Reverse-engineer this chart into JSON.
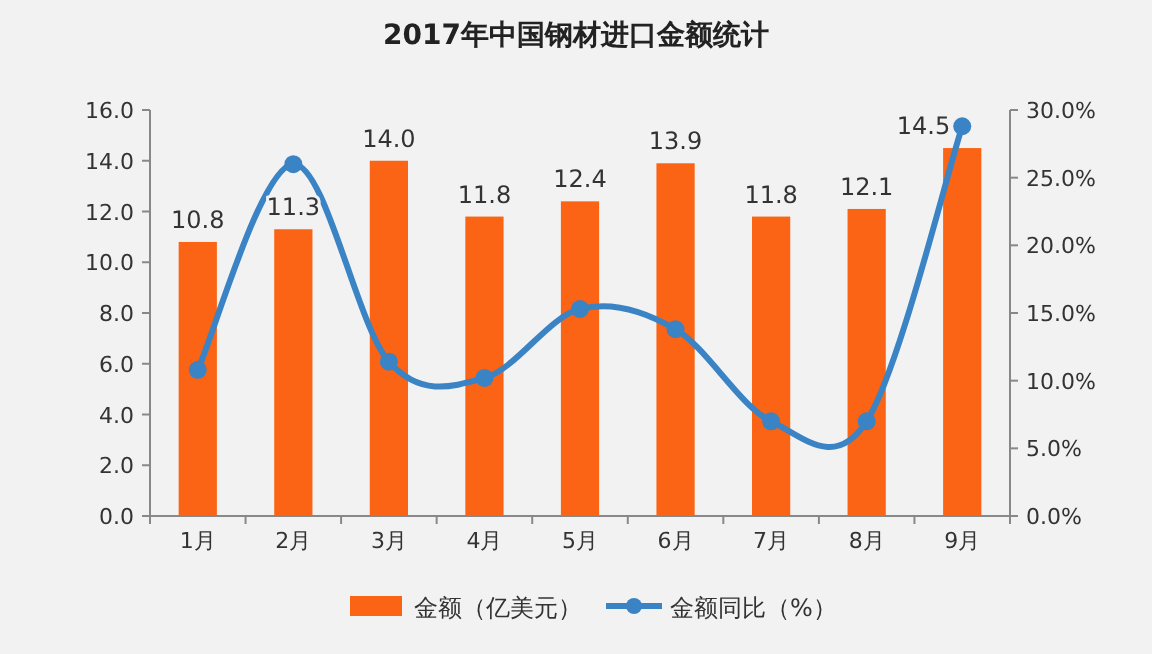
{
  "chart_data": {
    "type": "bar",
    "title": "2017年中国钢材进口金额统计",
    "categories": [
      "1月",
      "2月",
      "3月",
      "4月",
      "5月",
      "6月",
      "7月",
      "8月",
      "9月"
    ],
    "series": [
      {
        "name": "金额（亿美元）",
        "color": "#fa6414",
        "values": [
          10.8,
          11.3,
          14.0,
          11.8,
          12.4,
          13.9,
          11.8,
          12.1,
          14.5
        ],
        "value_labels": [
          "10.8",
          "11.3",
          "14.0",
          "11.8",
          "12.4",
          "13.9",
          "11.8",
          "12.1",
          "14.5"
        ]
      },
      {
        "name": "金额同比（%）",
        "type": "line",
        "axis": "y2",
        "color": "#3a83c4",
        "marker": "circle",
        "values": [
          10.8,
          26.0,
          11.4,
          10.2,
          15.3,
          13.8,
          7.0,
          7.0,
          28.8
        ]
      }
    ],
    "ylim": [
      0,
      16
    ],
    "yticks": [
      {
        "value": 0,
        "label": "0.0"
      },
      {
        "value": 2,
        "label": "2.0"
      },
      {
        "value": 4,
        "label": "4.0"
      },
      {
        "value": 6,
        "label": "6.0"
      },
      {
        "value": 8,
        "label": "8.0"
      },
      {
        "value": 10,
        "label": "10.0"
      },
      {
        "value": 12,
        "label": "12.0"
      },
      {
        "value": 14,
        "label": "14.0"
      },
      {
        "value": 16,
        "label": "16.0"
      }
    ],
    "y2lim": [
      0,
      30
    ],
    "y2ticks": [
      {
        "value": 0,
        "label": "0.0%"
      },
      {
        "value": 5,
        "label": "5.0%"
      },
      {
        "value": 10,
        "label": "10.0%"
      },
      {
        "value": 15,
        "label": "15.0%"
      },
      {
        "value": 20,
        "label": "20.0%"
      },
      {
        "value": 25,
        "label": "25.0%"
      },
      {
        "value": 30,
        "label": "30.0%"
      }
    ],
    "grid": false,
    "legend": "bottom"
  }
}
